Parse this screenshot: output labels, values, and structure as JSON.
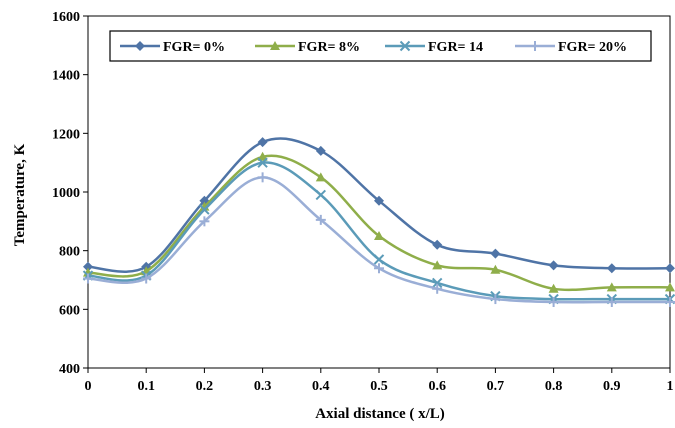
{
  "chart_data": {
    "type": "line",
    "title": "",
    "xlabel": "Axial distance ( x/L)",
    "ylabel": "Temperature, K",
    "xlim": [
      0,
      1
    ],
    "ylim": [
      400,
      1600
    ],
    "x_ticks": [
      "0",
      "0.1",
      "0.2",
      "0.3",
      "0.4",
      "0.5",
      "0.6",
      "0.7",
      "0.8",
      "0.9",
      "1"
    ],
    "y_ticks": [
      "400",
      "600",
      "800",
      "1000",
      "1200",
      "1400",
      "1600"
    ],
    "grid": false,
    "legend_position": "top",
    "x": [
      0,
      0.1,
      0.2,
      0.3,
      0.4,
      0.5,
      0.6,
      0.7,
      0.8,
      0.9,
      1
    ],
    "series": [
      {
        "name": "FGR= 0%",
        "color": "#4f74a6",
        "marker": "diamond",
        "values": [
          745,
          745,
          970,
          1170,
          1140,
          970,
          820,
          790,
          750,
          740,
          740
        ]
      },
      {
        "name": "FGR= 8%",
        "color": "#8fae4a",
        "marker": "triangle",
        "values": [
          725,
          730,
          950,
          1120,
          1050,
          850,
          750,
          735,
          670,
          675,
          675
        ]
      },
      {
        "name": "FGR= 14",
        "color": "#5b9bb8",
        "marker": "x",
        "values": [
          715,
          715,
          940,
          1100,
          990,
          770,
          690,
          645,
          635,
          635,
          635
        ]
      },
      {
        "name": "FGR= 20%",
        "color": "#9aaed6",
        "marker": "plus",
        "values": [
          705,
          705,
          900,
          1050,
          905,
          740,
          670,
          635,
          625,
          625,
          625
        ]
      }
    ]
  }
}
